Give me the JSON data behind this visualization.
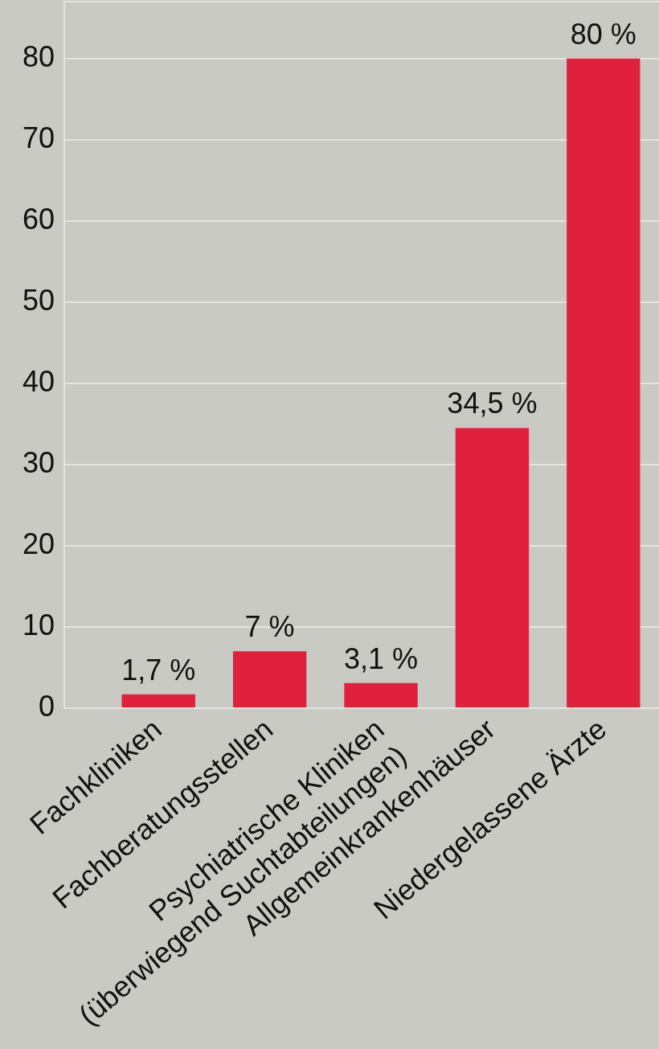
{
  "chart_data": {
    "type": "bar",
    "categories": [
      "Fachkliniken",
      "Fachberatungsstellen",
      "Psychiatrische Kliniken (überwiegend Suchtabteilungen)",
      "Allgemeinkrankenhäuser",
      "Niedergelassene Ärzte"
    ],
    "values": [
      1.7,
      7,
      3.1,
      34.5,
      80
    ],
    "color": "#e0203c",
    "value_labels": [
      "1,7 %",
      "7 %",
      "3,1 %",
      "34,5 %",
      "80 %"
    ],
    "ylim": [
      0,
      87
    ],
    "yticks": [
      0,
      10,
      20,
      30,
      40,
      50,
      60,
      70,
      80
    ],
    "grid": "y"
  }
}
